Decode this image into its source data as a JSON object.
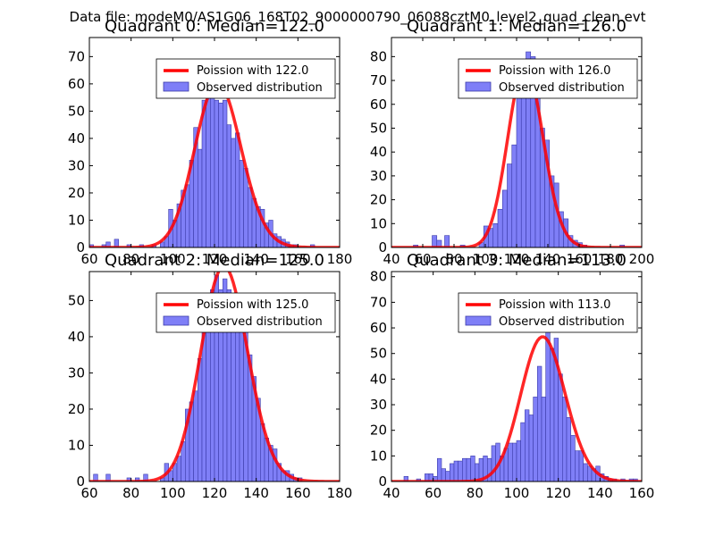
{
  "figure_title": "Data file: modeM0/AS1G06_168T02_9000000790_06088cztM0_level2_quad_clean.evt",
  "legend_observed_label": "Observed distribution",
  "colors": {
    "hist_fill": "#7f7ff7",
    "hist_edge": "#3a3aa8",
    "curve": "#ff0000",
    "axis": "#000000",
    "background": "#ffffff"
  },
  "chart_data": [
    {
      "type": "bar",
      "title": "Quadrant 0: Median=122.0",
      "median": 122.0,
      "legend_curve": "Poission with 122.0",
      "xlim": [
        60,
        180
      ],
      "ylim": [
        0,
        77
      ],
      "xticks": [
        60,
        80,
        100,
        120,
        140,
        160,
        180
      ],
      "yticks": [
        0,
        10,
        20,
        30,
        40,
        50,
        60,
        70
      ],
      "bin_width": 2,
      "bins": [
        [
          60,
          1
        ],
        [
          66,
          1
        ],
        [
          68,
          2
        ],
        [
          72,
          3
        ],
        [
          78,
          1
        ],
        [
          84,
          1
        ],
        [
          90,
          1
        ],
        [
          94,
          2
        ],
        [
          96,
          4
        ],
        [
          98,
          14
        ],
        [
          100,
          10
        ],
        [
          102,
          16
        ],
        [
          104,
          21
        ],
        [
          106,
          23
        ],
        [
          108,
          32
        ],
        [
          110,
          44
        ],
        [
          112,
          36
        ],
        [
          114,
          54
        ],
        [
          116,
          60
        ],
        [
          118,
          57
        ],
        [
          120,
          54
        ],
        [
          122,
          53
        ],
        [
          124,
          54
        ],
        [
          126,
          45
        ],
        [
          128,
          40
        ],
        [
          130,
          42
        ],
        [
          132,
          32
        ],
        [
          134,
          29
        ],
        [
          136,
          22
        ],
        [
          138,
          18
        ],
        [
          140,
          15
        ],
        [
          142,
          14
        ],
        [
          144,
          9
        ],
        [
          146,
          10
        ],
        [
          148,
          5
        ],
        [
          150,
          4
        ],
        [
          152,
          3
        ],
        [
          154,
          2
        ],
        [
          156,
          1
        ],
        [
          158,
          1
        ],
        [
          166,
          1
        ]
      ]
    },
    {
      "type": "bar",
      "title": "Quadrant 1: Median=126.0",
      "median": 126.0,
      "legend_curve": "Poission with 126.0",
      "xlim": [
        40,
        200
      ],
      "ylim": [
        0,
        88
      ],
      "xticks": [
        40,
        60,
        80,
        100,
        120,
        140,
        160,
        180,
        200
      ],
      "yticks": [
        0,
        10,
        20,
        30,
        40,
        50,
        60,
        70,
        80
      ],
      "bin_width": 3,
      "bins": [
        [
          54,
          1
        ],
        [
          66,
          5
        ],
        [
          69,
          3
        ],
        [
          74,
          5
        ],
        [
          84,
          1
        ],
        [
          96,
          2
        ],
        [
          99,
          9
        ],
        [
          102,
          8
        ],
        [
          105,
          10
        ],
        [
          108,
          16
        ],
        [
          111,
          24
        ],
        [
          114,
          35
        ],
        [
          117,
          43
        ],
        [
          120,
          67
        ],
        [
          123,
          70
        ],
        [
          126,
          82
        ],
        [
          129,
          80
        ],
        [
          132,
          64
        ],
        [
          135,
          50
        ],
        [
          138,
          45
        ],
        [
          141,
          30
        ],
        [
          144,
          27
        ],
        [
          147,
          15
        ],
        [
          150,
          12
        ],
        [
          153,
          5
        ],
        [
          156,
          3
        ],
        [
          159,
          2
        ],
        [
          162,
          1
        ],
        [
          186,
          1
        ]
      ]
    },
    {
      "type": "bar",
      "title": "Quadrant 2: Median=125.0",
      "median": 125.0,
      "legend_curve": "Poission with 125.0",
      "xlim": [
        60,
        180
      ],
      "ylim": [
        0,
        58
      ],
      "xticks": [
        60,
        80,
        100,
        120,
        140,
        160,
        180
      ],
      "yticks": [
        0,
        10,
        20,
        30,
        40,
        50
      ],
      "bin_width": 2,
      "bins": [
        [
          62,
          2
        ],
        [
          68,
          2
        ],
        [
          78,
          1
        ],
        [
          82,
          1
        ],
        [
          86,
          2
        ],
        [
          94,
          1
        ],
        [
          96,
          5
        ],
        [
          98,
          3
        ],
        [
          100,
          5
        ],
        [
          102,
          7
        ],
        [
          104,
          11
        ],
        [
          106,
          20
        ],
        [
          108,
          22
        ],
        [
          110,
          25
        ],
        [
          112,
          34
        ],
        [
          114,
          43
        ],
        [
          116,
          46
        ],
        [
          118,
          53
        ],
        [
          120,
          57
        ],
        [
          122,
          53
        ],
        [
          124,
          56
        ],
        [
          126,
          53
        ],
        [
          128,
          50
        ],
        [
          130,
          48
        ],
        [
          132,
          42
        ],
        [
          134,
          43
        ],
        [
          136,
          35
        ],
        [
          138,
          29
        ],
        [
          140,
          23
        ],
        [
          142,
          16
        ],
        [
          144,
          12
        ],
        [
          146,
          10
        ],
        [
          148,
          9
        ],
        [
          150,
          5
        ],
        [
          152,
          3
        ],
        [
          154,
          3
        ],
        [
          156,
          2
        ],
        [
          158,
          1
        ],
        [
          160,
          1
        ]
      ]
    },
    {
      "type": "bar",
      "title": "Quadrant 3: Median=113.0",
      "median": 113.0,
      "legend_curve": "Poission with 113.0",
      "xlim": [
        40,
        160
      ],
      "ylim": [
        0,
        82
      ],
      "xticks": [
        40,
        60,
        80,
        100,
        120,
        140,
        160
      ],
      "yticks": [
        0,
        10,
        20,
        30,
        40,
        50,
        60,
        70,
        80
      ],
      "bin_width": 2,
      "bins": [
        [
          46,
          2
        ],
        [
          52,
          1
        ],
        [
          56,
          3
        ],
        [
          58,
          3
        ],
        [
          60,
          2
        ],
        [
          62,
          9
        ],
        [
          64,
          5
        ],
        [
          66,
          4
        ],
        [
          68,
          7
        ],
        [
          70,
          8
        ],
        [
          72,
          8
        ],
        [
          74,
          9
        ],
        [
          76,
          9
        ],
        [
          78,
          10
        ],
        [
          80,
          7
        ],
        [
          82,
          9
        ],
        [
          84,
          10
        ],
        [
          86,
          9
        ],
        [
          88,
          14
        ],
        [
          90,
          15
        ],
        [
          92,
          10
        ],
        [
          94,
          13
        ],
        [
          96,
          15
        ],
        [
          98,
          15
        ],
        [
          100,
          16
        ],
        [
          102,
          23
        ],
        [
          104,
          28
        ],
        [
          106,
          26
        ],
        [
          108,
          33
        ],
        [
          110,
          45
        ],
        [
          112,
          33
        ],
        [
          114,
          68
        ],
        [
          116,
          52
        ],
        [
          118,
          56
        ],
        [
          120,
          42
        ],
        [
          122,
          33
        ],
        [
          124,
          25
        ],
        [
          126,
          18
        ],
        [
          128,
          12
        ],
        [
          130,
          12
        ],
        [
          132,
          7
        ],
        [
          134,
          6
        ],
        [
          136,
          5
        ],
        [
          138,
          6
        ],
        [
          140,
          3
        ],
        [
          142,
          2
        ],
        [
          144,
          1
        ],
        [
          146,
          1
        ],
        [
          150,
          1
        ],
        [
          154,
          1
        ],
        [
          156,
          1
        ]
      ]
    }
  ]
}
